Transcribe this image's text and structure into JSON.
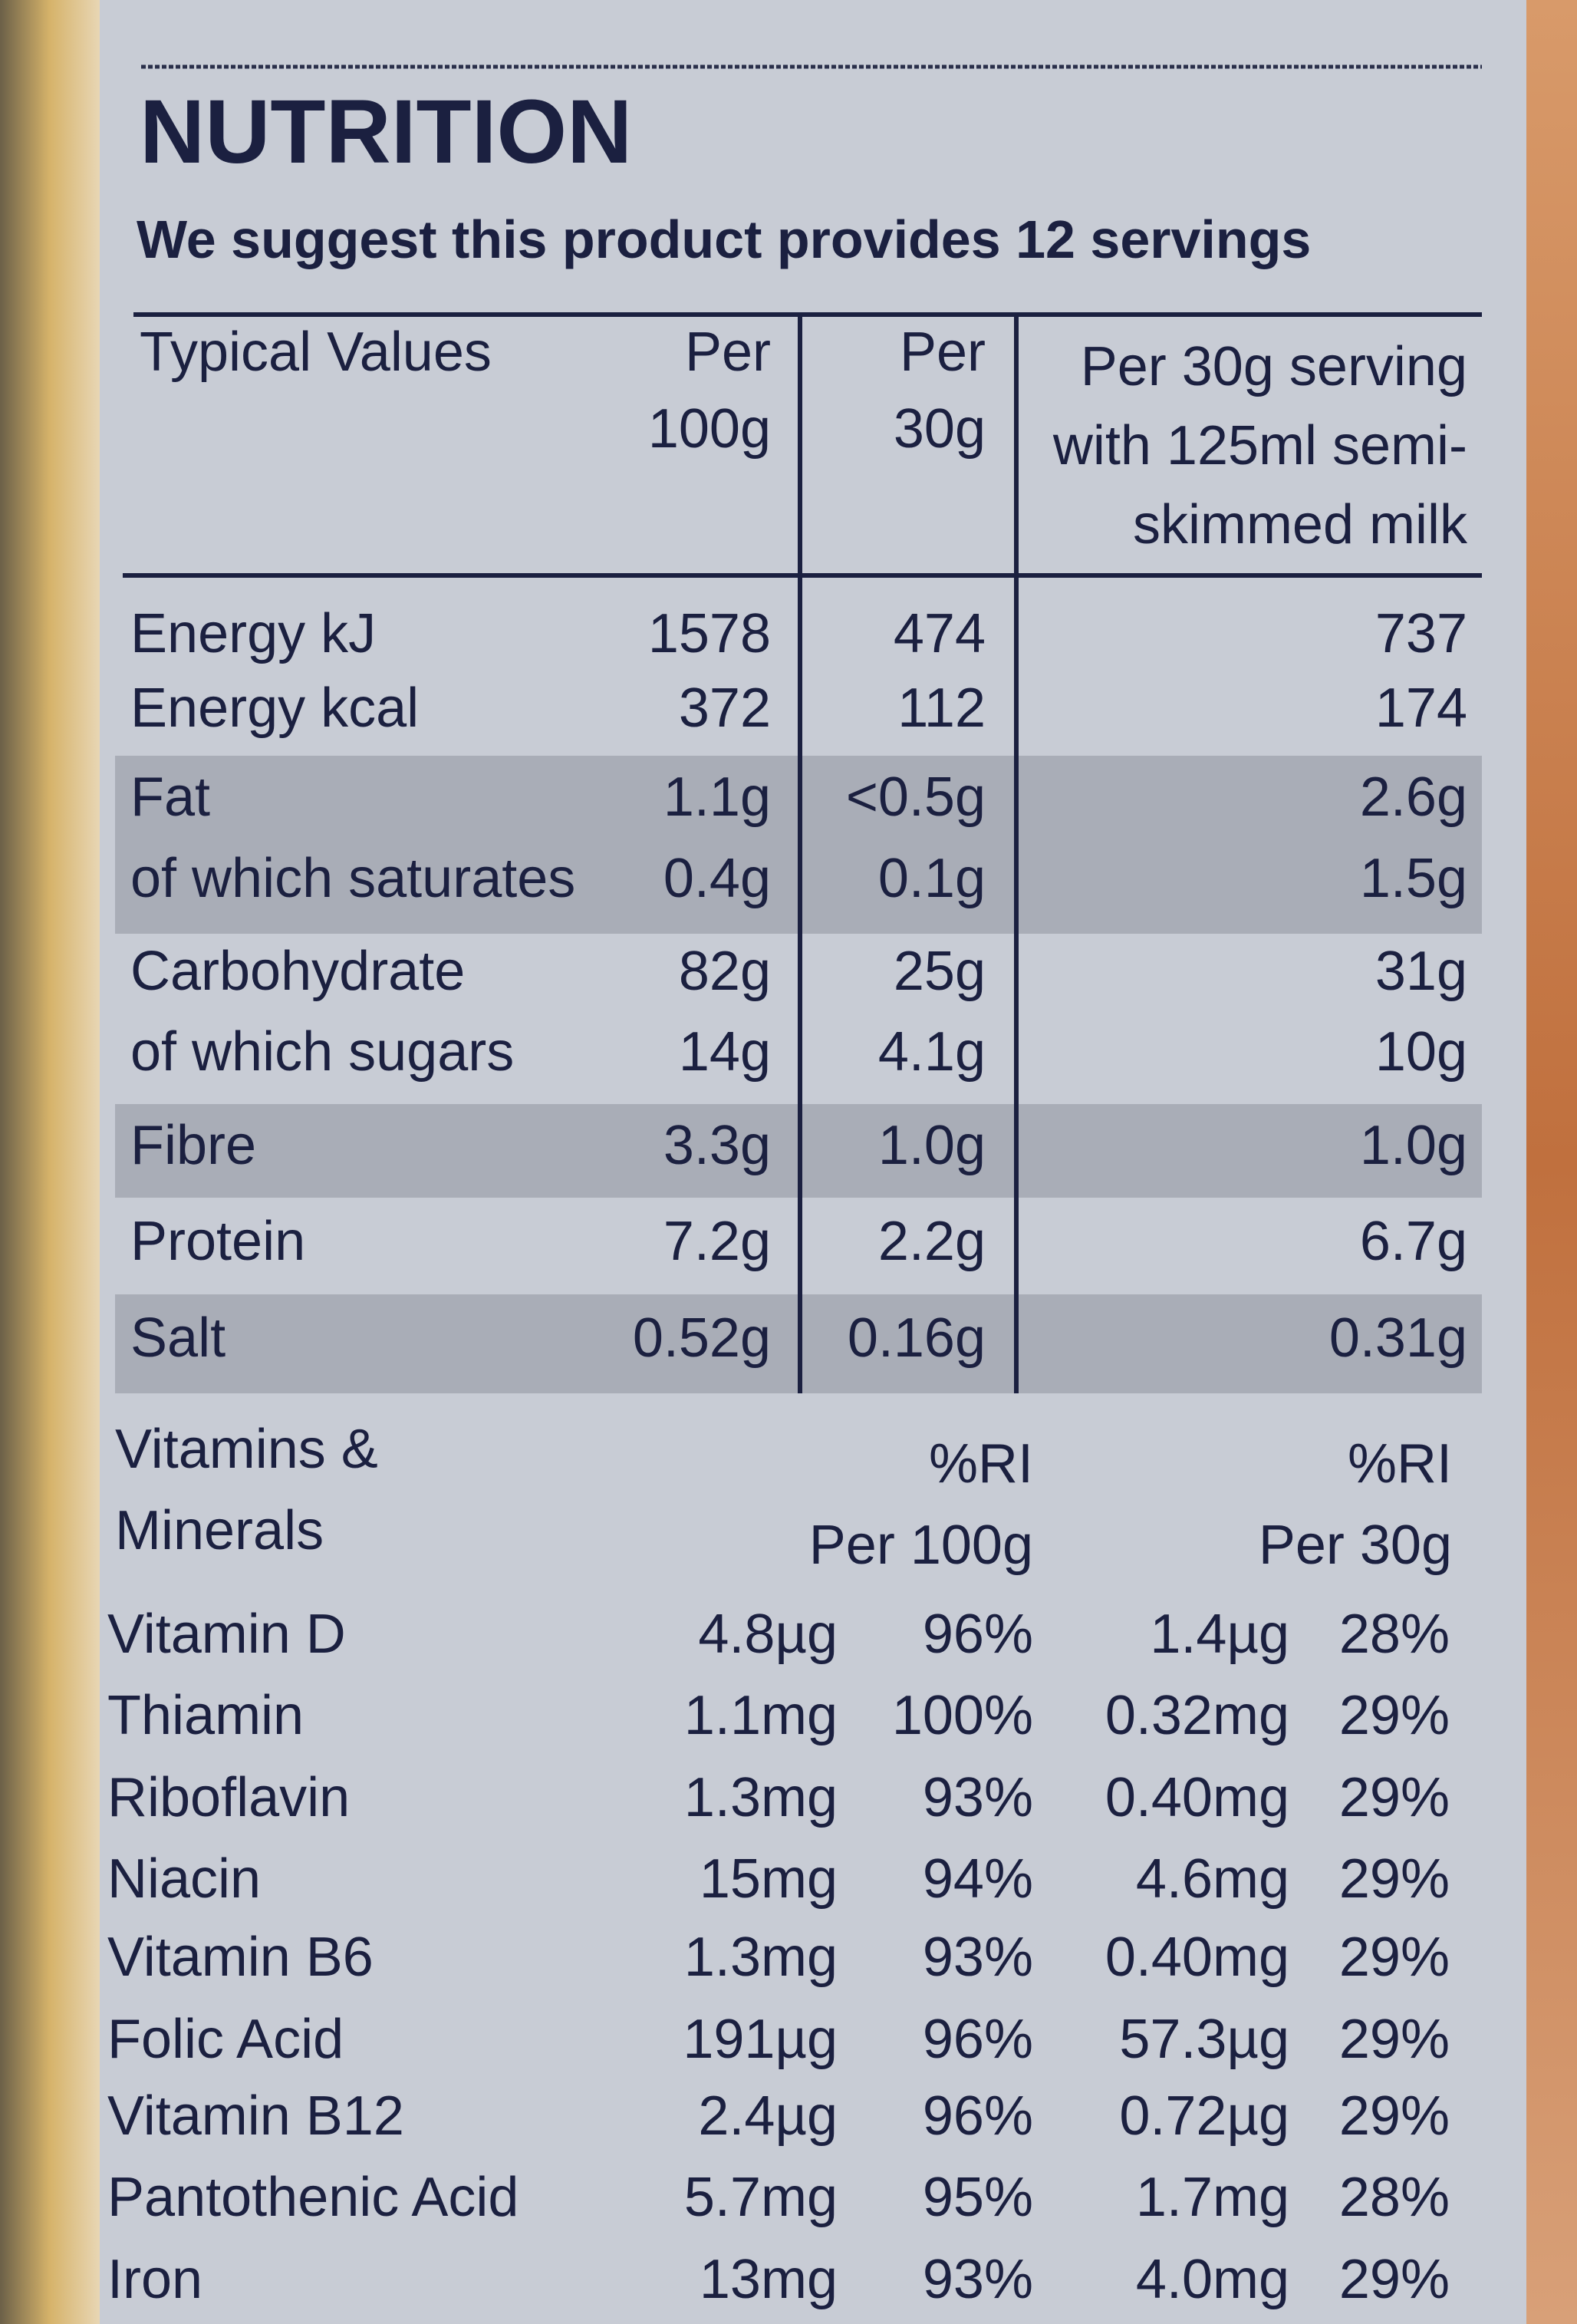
{
  "header": {
    "title": "NUTRITION",
    "subtitle": "We suggest this product provides 12 servings"
  },
  "table": {
    "columns": [
      "Typical Values",
      "Per 100g",
      "Per 30g",
      "Per 30g serving with 125ml semi-skimmed milk"
    ],
    "rows": [
      [
        "Energy kJ",
        "1578",
        "474",
        "737"
      ],
      [
        "Energy kcal",
        "372",
        "112",
        "174"
      ],
      [
        "Fat",
        "1.1g",
        "<0.5g",
        "2.6g"
      ],
      [
        "of which saturates",
        "0.4g",
        "0.1g",
        "1.5g"
      ],
      [
        "Carbohydrate",
        "82g",
        "25g",
        "31g"
      ],
      [
        "of which sugars",
        "14g",
        "4.1g",
        "10g"
      ],
      [
        "Fibre",
        "3.3g",
        "1.0g",
        "1.0g"
      ],
      [
        "Protein",
        "7.2g",
        "2.2g",
        "6.7g"
      ],
      [
        "Salt",
        "0.52g",
        "0.16g",
        "0.31g"
      ]
    ]
  },
  "vitamins": {
    "heading": "Vitamins & Minerals",
    "ri_label": "%RI",
    "per100": "Per 100g",
    "per30": "Per 30g",
    "rows": [
      [
        "Vitamin D",
        "4.8µg",
        "96%",
        "1.4µg",
        "28%"
      ],
      [
        "Thiamin",
        "1.1mg",
        "100%",
        "0.32mg",
        "29%"
      ],
      [
        "Riboflavin",
        "1.3mg",
        "93%",
        "0.40mg",
        "29%"
      ],
      [
        "Niacin",
        "15mg",
        "94%",
        "4.6mg",
        "29%"
      ],
      [
        "Vitamin B6",
        "1.3mg",
        "93%",
        "0.40mg",
        "29%"
      ],
      [
        "Folic Acid",
        "191µg",
        "96%",
        "57.3µg",
        "29%"
      ],
      [
        "Vitamin B12",
        "2.4µg",
        "96%",
        "0.72µg",
        "29%"
      ],
      [
        "Pantothenic Acid",
        "5.7mg",
        "95%",
        "1.7mg",
        "28%"
      ],
      [
        "Iron",
        "13mg",
        "93%",
        "4.0mg",
        "29%"
      ]
    ]
  }
}
